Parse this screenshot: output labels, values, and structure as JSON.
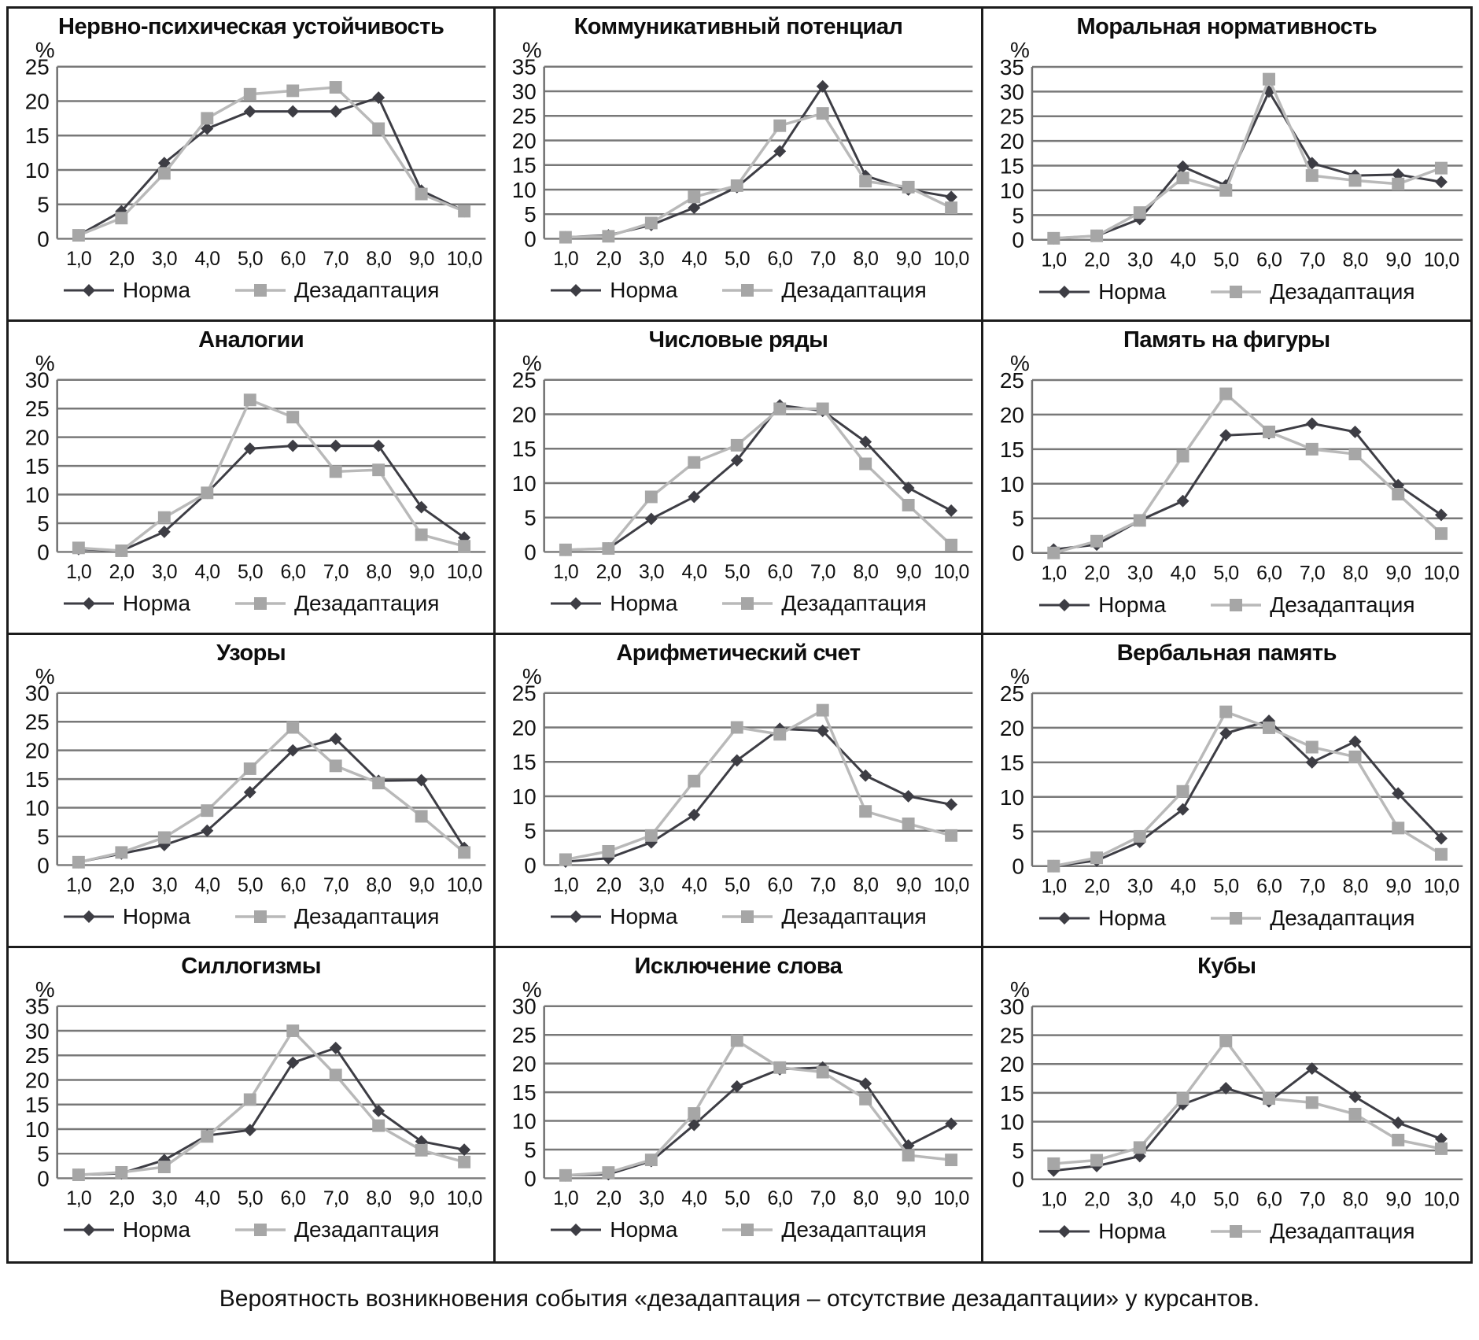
{
  "figure": {
    "percent_label": "%",
    "x_labels": [
      "1,0",
      "2,0",
      "3,0",
      "4,0",
      "5,0",
      "6,0",
      "7,0",
      "8,0",
      "9,0",
      "10,0"
    ],
    "legend": {
      "norm": "Норма",
      "dez": "Дезадаптация"
    },
    "caption": "Вероятность возникновения события «дезадаптация – отсутствие дезадаптации» у курсантов.",
    "colors": {
      "norm": "#3d3d44",
      "dez_line": "#b9b9b9",
      "dez_marker": "#a6a6a6",
      "grid": "#787878"
    }
  },
  "chart_data": [
    {
      "type": "line",
      "title": "Нервно-психическая устойчивость",
      "ylim": [
        0,
        25
      ],
      "ytick_step": 5,
      "series": [
        {
          "name": "Норма",
          "values": [
            0.5,
            4,
            11,
            16,
            18.5,
            18.5,
            18.5,
            20.5,
            7,
            4
          ]
        },
        {
          "name": "Дезадаптация",
          "values": [
            0.5,
            3,
            9.5,
            17.5,
            21,
            21.5,
            22,
            16,
            6.5,
            4
          ]
        }
      ]
    },
    {
      "type": "line",
      "title": "Коммуникативный потенциал",
      "ylim": [
        0,
        35
      ],
      "ytick_step": 5,
      "series": [
        {
          "name": "Норма",
          "values": [
            0.3,
            0.7,
            2.8,
            6.3,
            10.5,
            17.8,
            31,
            12.8,
            10,
            8.5
          ]
        },
        {
          "name": "Дезадаптация",
          "values": [
            0.3,
            0.5,
            3.2,
            8.5,
            10.8,
            23,
            25.5,
            11.7,
            10.5,
            6.3
          ]
        }
      ]
    },
    {
      "type": "line",
      "title": "Моральная нормативность",
      "ylim": [
        0,
        35
      ],
      "ytick_step": 5,
      "series": [
        {
          "name": "Норма",
          "values": [
            0.3,
            0.8,
            4.2,
            14.8,
            11,
            30,
            15.5,
            13,
            13.2,
            11.7
          ]
        },
        {
          "name": "Дезадаптация",
          "values": [
            0.3,
            0.8,
            5.5,
            12.5,
            10,
            32.5,
            13,
            12,
            11.3,
            14.5
          ]
        }
      ]
    },
    {
      "type": "line",
      "title": "Аналогии",
      "ylim": [
        0,
        30
      ],
      "ytick_step": 5,
      "series": [
        {
          "name": "Норма",
          "values": [
            0.5,
            0.2,
            3.5,
            10.3,
            18,
            18.5,
            18.5,
            18.5,
            7.8,
            2.5
          ]
        },
        {
          "name": "Дезадаптация",
          "values": [
            0.7,
            0.2,
            6,
            10.3,
            26.5,
            23.5,
            14,
            14.3,
            3,
            1
          ]
        }
      ]
    },
    {
      "type": "line",
      "title": "Числовые ряды",
      "ylim": [
        0,
        25
      ],
      "ytick_step": 5,
      "series": [
        {
          "name": "Норма",
          "values": [
            0.3,
            0.5,
            4.8,
            8,
            13.3,
            21.3,
            20.5,
            16,
            9.3,
            6
          ]
        },
        {
          "name": "Дезадаптация",
          "values": [
            0.3,
            0.5,
            8,
            13,
            15.5,
            20.8,
            20.8,
            12.8,
            6.8,
            1
          ]
        }
      ]
    },
    {
      "type": "line",
      "title": "Память на фигуры",
      "ylim": [
        0,
        25
      ],
      "ytick_step": 5,
      "series": [
        {
          "name": "Норма",
          "values": [
            0.5,
            1.2,
            4.7,
            7.5,
            17,
            17.3,
            18.7,
            17.5,
            9.8,
            5.5
          ]
        },
        {
          "name": "Дезадаптация",
          "values": [
            0,
            1.7,
            4.7,
            14,
            23,
            17.5,
            15,
            14.3,
            8.5,
            2.8
          ]
        }
      ]
    },
    {
      "type": "line",
      "title": "Узоры",
      "ylim": [
        0,
        30
      ],
      "ytick_step": 5,
      "series": [
        {
          "name": "Норма",
          "values": [
            0.5,
            2,
            3.5,
            6,
            12.7,
            20,
            22,
            14.7,
            14.8,
            3
          ]
        },
        {
          "name": "Дезадаптация",
          "values": [
            0.5,
            2.2,
            4.8,
            9.5,
            16.8,
            24,
            17.3,
            14.3,
            8.5,
            2.2
          ]
        }
      ]
    },
    {
      "type": "line",
      "title": "Арифметический счет",
      "ylim": [
        0,
        25
      ],
      "ytick_step": 5,
      "series": [
        {
          "name": "Норма",
          "values": [
            0.5,
            1,
            3.3,
            7.3,
            15.2,
            19.8,
            19.5,
            13,
            10,
            8.8
          ]
        },
        {
          "name": "Дезадаптация",
          "values": [
            0.8,
            2,
            4.3,
            12.2,
            20,
            19,
            22.5,
            7.8,
            6,
            4.3
          ]
        }
      ]
    },
    {
      "type": "line",
      "title": "Вербальная память",
      "ylim": [
        0,
        25
      ],
      "ytick_step": 5,
      "series": [
        {
          "name": "Норма",
          "values": [
            0,
            0.8,
            3.5,
            8.2,
            19.2,
            21,
            15,
            18,
            10.5,
            4
          ]
        },
        {
          "name": "Дезадаптация",
          "values": [
            0,
            1.2,
            4.3,
            10.8,
            22.3,
            20,
            17.2,
            15.8,
            5.5,
            1.7
          ]
        }
      ]
    },
    {
      "type": "line",
      "title": "Силлогизмы",
      "ylim": [
        0,
        35
      ],
      "ytick_step": 5,
      "series": [
        {
          "name": "Норма",
          "values": [
            0.7,
            1,
            3.7,
            8.7,
            9.8,
            23.5,
            26.5,
            13.7,
            7.5,
            5.8
          ]
        },
        {
          "name": "Дезадаптация",
          "values": [
            0.7,
            1.2,
            2.3,
            8.5,
            16,
            30,
            21,
            10.7,
            5.7,
            3.3
          ]
        }
      ]
    },
    {
      "type": "line",
      "title": "Исключение слова",
      "ylim": [
        0,
        30
      ],
      "ytick_step": 5,
      "series": [
        {
          "name": "Норма",
          "values": [
            0.5,
            0.7,
            3,
            9.3,
            16,
            19,
            19.3,
            16.5,
            5.7,
            9.5
          ]
        },
        {
          "name": "Дезадаптация",
          "values": [
            0.5,
            1,
            3.2,
            11.3,
            24,
            19.3,
            18.5,
            13.8,
            4,
            3.2
          ]
        }
      ]
    },
    {
      "type": "line",
      "title": "Кубы",
      "ylim": [
        0,
        30
      ],
      "ytick_step": 5,
      "series": [
        {
          "name": "Норма",
          "values": [
            1.5,
            2.3,
            4,
            13,
            15.8,
            13.5,
            19.2,
            14.3,
            9.8,
            7
          ]
        },
        {
          "name": "Дезадаптация",
          "values": [
            2.7,
            3.3,
            5.5,
            14,
            24,
            14,
            13.3,
            11.3,
            6.8,
            5.3
          ]
        }
      ]
    }
  ]
}
